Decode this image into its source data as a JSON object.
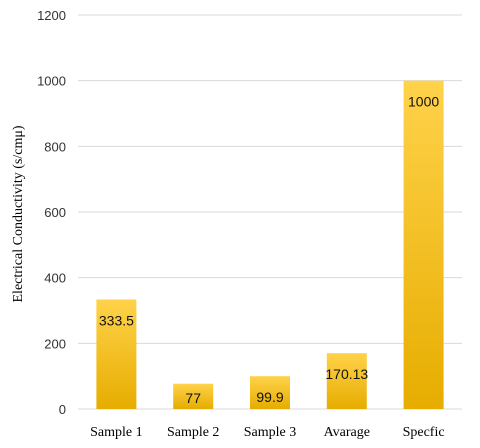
{
  "chart_data": {
    "type": "bar",
    "title": "",
    "xlabel": "",
    "ylabel": "Electrical Conductivity (s/cmμ)",
    "categories": [
      "Sample 1",
      "Sample 2",
      "Sample 3",
      "Avarage",
      "Specfic"
    ],
    "values": [
      333.5,
      77,
      99.9,
      170.13,
      1000
    ],
    "data_labels": [
      "333.5",
      "77",
      "99.9",
      "170.13",
      "1000"
    ],
    "ylim": [
      0,
      1200
    ],
    "yticks": [
      0,
      200,
      400,
      600,
      800,
      1000,
      1200
    ],
    "grid": true,
    "legend": "none",
    "bar_color_top": "#ffd24a",
    "bar_color_bottom": "#e6ad00",
    "grid_color": "#d9d9d9"
  }
}
